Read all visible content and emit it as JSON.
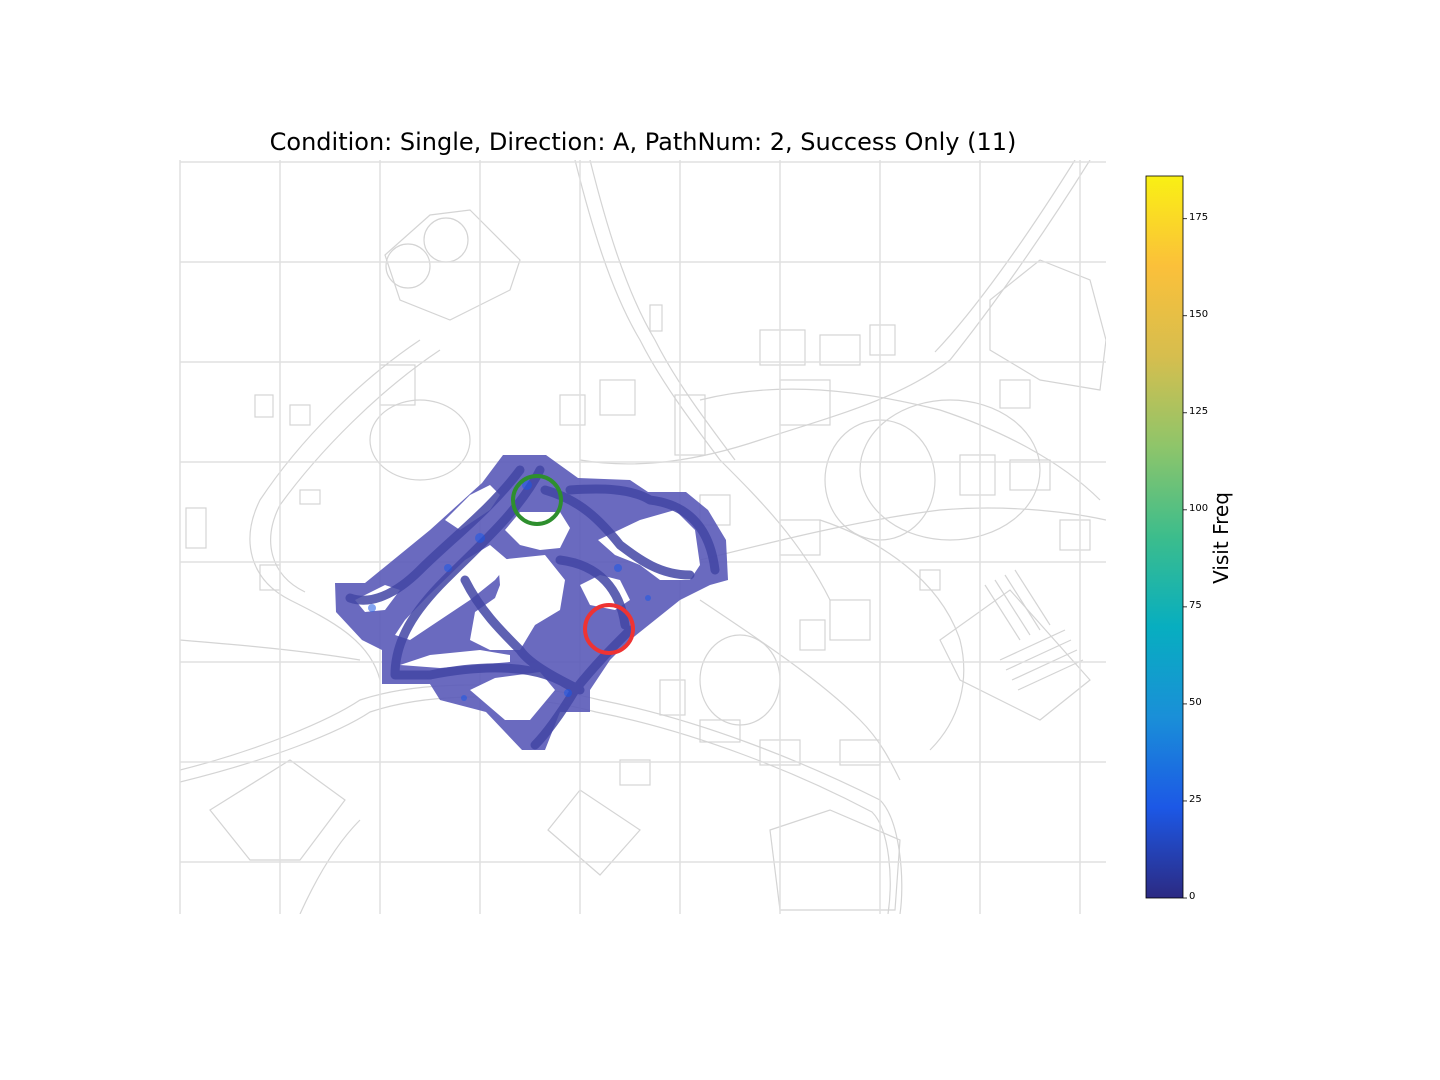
{
  "chart_data": {
    "type": "heatmap",
    "title": "Condition: Single, Direction: A, PathNum: 2, Success Only (11)",
    "colorbar": {
      "label": "Visit Freq",
      "range": [
        0,
        186
      ],
      "ticks": [
        0,
        25,
        50,
        75,
        100,
        125,
        150,
        175
      ],
      "colormap": [
        "#2c2a82",
        "#1c58e6",
        "#1a8fd8",
        "#07aec0",
        "#3cbd8c",
        "#8ec56a",
        "#d6be4e",
        "#fbc03a",
        "#f9f014"
      ]
    },
    "grid": true,
    "axes_visible": false,
    "markers": [
      {
        "name": "start",
        "color": "#2e8f2e"
      },
      {
        "name": "goal",
        "color": "#ee3333"
      }
    ],
    "heat_color": "#5a5ab8",
    "path_color": "#4346a5"
  }
}
